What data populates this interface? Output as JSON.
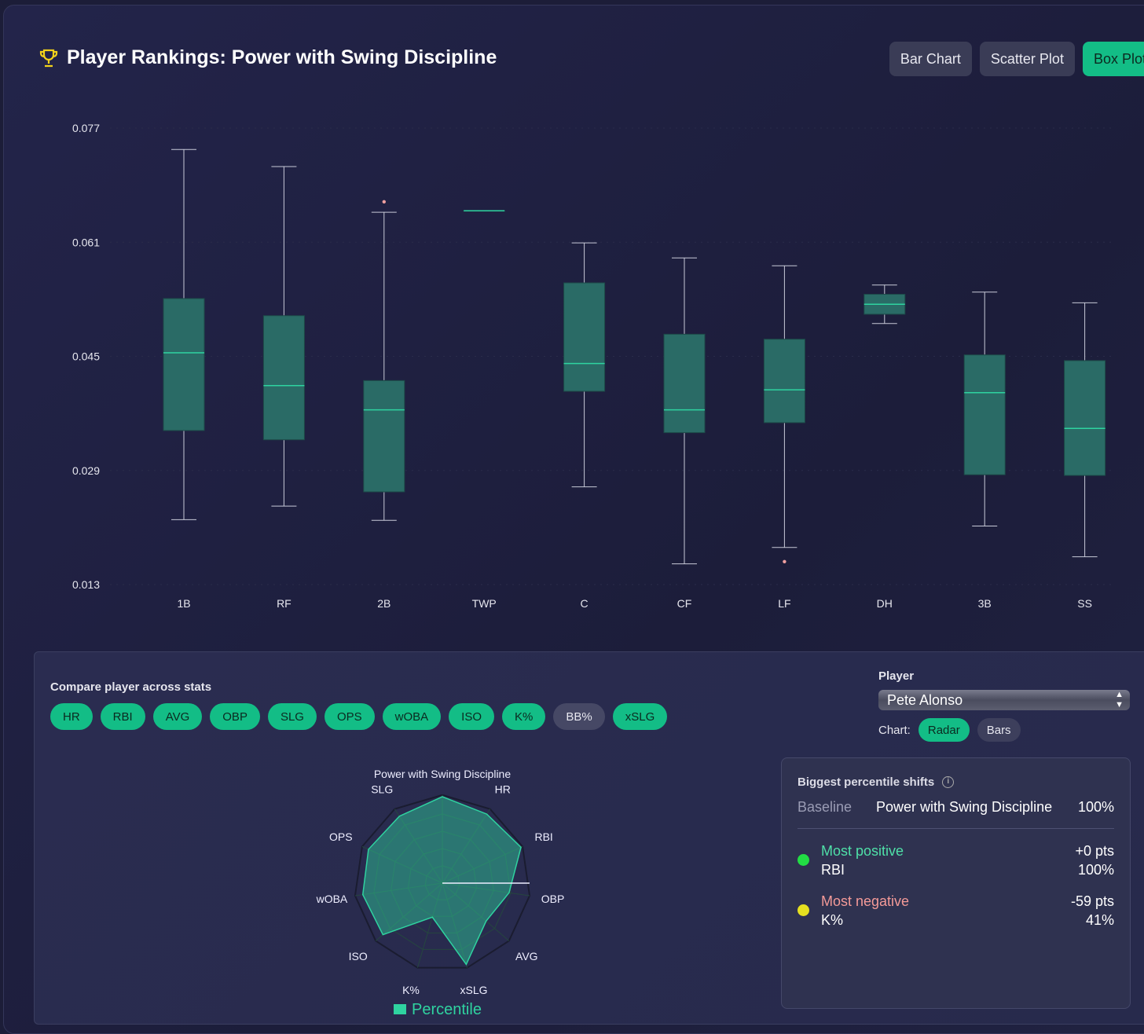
{
  "header": {
    "title": "Player Rankings: Power with Swing Discipline",
    "icon": "trophy-icon",
    "buttons": [
      "Bar Chart",
      "Scatter Plot",
      "Box Plot"
    ],
    "active": "Box Plot"
  },
  "chart_data": [
    {
      "type": "box",
      "categories": [
        "1B",
        "RF",
        "2B",
        "TWP",
        "C",
        "CF",
        "LF",
        "DH",
        "3B",
        "SS"
      ],
      "yticks": [
        "0.077",
        "0.061",
        "0.045",
        "0.029",
        "0.013"
      ],
      "ylim": [
        0.013,
        0.077
      ],
      "series": [
        {
          "name": "1B",
          "min": 0.0221,
          "q1": 0.0346,
          "median": 0.0455,
          "q3": 0.0531,
          "max": 0.074,
          "outliers": []
        },
        {
          "name": "RF",
          "min": 0.024,
          "q1": 0.0333,
          "median": 0.0409,
          "q3": 0.0507,
          "max": 0.0716,
          "outliers": []
        },
        {
          "name": "2B",
          "min": 0.022,
          "q1": 0.026,
          "median": 0.0375,
          "q3": 0.0416,
          "max": 0.0652,
          "outliers": [
            0.066
          ]
        },
        {
          "name": "TWP",
          "min": 0.0654,
          "q1": 0.0654,
          "median": 0.0654,
          "q3": 0.0654,
          "max": 0.0654,
          "outliers": []
        },
        {
          "name": "C",
          "min": 0.0267,
          "q1": 0.0401,
          "median": 0.044,
          "q3": 0.0553,
          "max": 0.0609,
          "outliers": []
        },
        {
          "name": "CF",
          "min": 0.0159,
          "q1": 0.0343,
          "median": 0.0375,
          "q3": 0.0481,
          "max": 0.0588,
          "outliers": []
        },
        {
          "name": "LF",
          "min": 0.0182,
          "q1": 0.0357,
          "median": 0.0403,
          "q3": 0.0474,
          "max": 0.0577,
          "outliers": [
            0.0171
          ]
        },
        {
          "name": "DH",
          "min": 0.0496,
          "q1": 0.0509,
          "median": 0.0523,
          "q3": 0.0537,
          "max": 0.055,
          "outliers": []
        },
        {
          "name": "3B",
          "min": 0.0212,
          "q1": 0.0284,
          "median": 0.0399,
          "q3": 0.0452,
          "max": 0.054,
          "outliers": []
        },
        {
          "name": "SS",
          "min": 0.0169,
          "q1": 0.0283,
          "median": 0.0349,
          "q3": 0.0444,
          "max": 0.0525,
          "outliers": []
        }
      ],
      "colors": {
        "box": "#2a6b66",
        "median": "#2fd3a0",
        "whisker": "#c8cad8",
        "outlier": "#f0a0a0"
      }
    },
    {
      "type": "radar",
      "axes": [
        "Power with Swing Discipline",
        "HR",
        "RBI",
        "OBP",
        "AVG",
        "xSLG",
        "K%",
        "ISO",
        "wOBA",
        "OPS",
        "SLG"
      ],
      "values": [
        100,
        95,
        100,
        78,
        67,
        98,
        41,
        91,
        93,
        94,
        92
      ],
      "range": [
        0,
        100
      ],
      "legend": "Percentile",
      "color": "#2fd3a0"
    }
  ],
  "compare": {
    "label": "Compare player across stats",
    "chips": [
      {
        "label": "HR",
        "on": true
      },
      {
        "label": "RBI",
        "on": true
      },
      {
        "label": "AVG",
        "on": true
      },
      {
        "label": "OBP",
        "on": true
      },
      {
        "label": "SLG",
        "on": true
      },
      {
        "label": "OPS",
        "on": true
      },
      {
        "label": "wOBA",
        "on": true
      },
      {
        "label": "ISO",
        "on": true
      },
      {
        "label": "K%",
        "on": true
      },
      {
        "label": "BB%",
        "on": false
      },
      {
        "label": "xSLG",
        "on": true
      }
    ]
  },
  "player": {
    "label": "Player",
    "value": "Pete Alonso",
    "chart_label": "Chart:",
    "chart_options": [
      "Radar",
      "Bars"
    ],
    "chart_active": "Radar"
  },
  "shifts": {
    "title": "Biggest percentile shifts",
    "baseline_label": "Baseline",
    "baseline_name": "Power with Swing Discipline",
    "baseline_value": "100%",
    "positive": {
      "label": "Most positive",
      "stat": "RBI",
      "delta": "+0 pts",
      "value": "100%",
      "color": "#22dd44"
    },
    "negative": {
      "label": "Most negative",
      "stat": "K%",
      "delta": "-59 pts",
      "value": "41%",
      "color": "#e6e020"
    }
  }
}
